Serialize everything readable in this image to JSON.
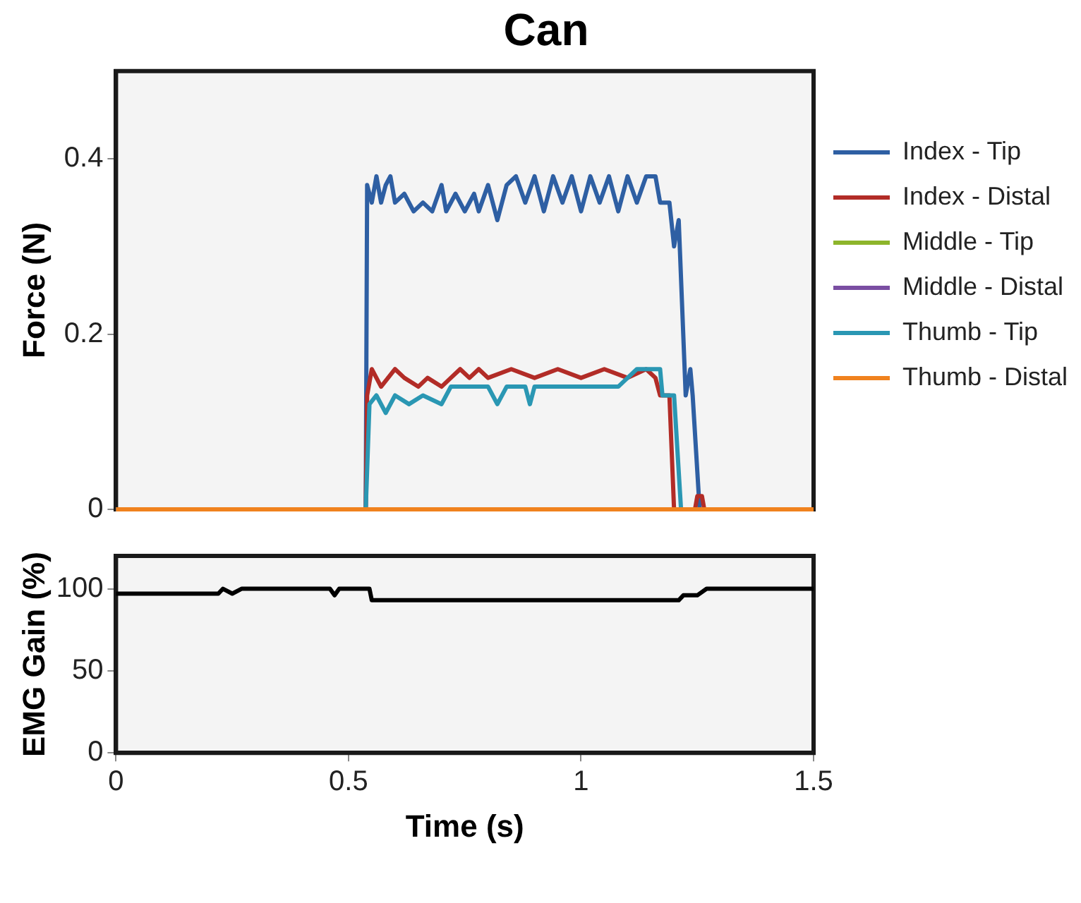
{
  "chart_data": [
    {
      "type": "line",
      "title": "Can",
      "ylabel": "Force (N)",
      "xlim": [
        0,
        1.5
      ],
      "ylim": [
        0,
        0.5
      ],
      "yticks": [
        0,
        0.2,
        0.4
      ],
      "tick_labels": "y",
      "grid": false,
      "legend": "right",
      "series": [
        {
          "name": "Index - Tip",
          "color": "#2e5fa3",
          "x": [
            0,
            0.537,
            0.54,
            0.55,
            0.56,
            0.57,
            0.58,
            0.59,
            0.6,
            0.62,
            0.64,
            0.66,
            0.68,
            0.7,
            0.71,
            0.73,
            0.75,
            0.77,
            0.78,
            0.8,
            0.82,
            0.84,
            0.86,
            0.88,
            0.9,
            0.92,
            0.94,
            0.96,
            0.98,
            1.0,
            1.02,
            1.04,
            1.06,
            1.08,
            1.1,
            1.12,
            1.14,
            1.16,
            1.17,
            1.19,
            1.2,
            1.21,
            1.225,
            1.235,
            1.24,
            1.255,
            1.5
          ],
          "values": [
            0,
            0,
            0.37,
            0.35,
            0.38,
            0.35,
            0.37,
            0.38,
            0.35,
            0.36,
            0.34,
            0.35,
            0.34,
            0.37,
            0.34,
            0.36,
            0.34,
            0.36,
            0.34,
            0.37,
            0.33,
            0.37,
            0.38,
            0.35,
            0.38,
            0.34,
            0.38,
            0.35,
            0.38,
            0.34,
            0.38,
            0.35,
            0.38,
            0.34,
            0.38,
            0.35,
            0.38,
            0.38,
            0.35,
            0.35,
            0.3,
            0.33,
            0.13,
            0.16,
            0.13,
            0,
            0
          ]
        },
        {
          "name": "Index - Distal",
          "color": "#b22c27",
          "x": [
            0,
            0.537,
            0.54,
            0.55,
            0.57,
            0.6,
            0.62,
            0.65,
            0.67,
            0.7,
            0.72,
            0.74,
            0.76,
            0.78,
            0.8,
            0.85,
            0.9,
            0.95,
            1.0,
            1.05,
            1.1,
            1.14,
            1.16,
            1.17,
            1.19,
            1.2,
            1.245,
            1.25,
            1.26,
            1.265,
            1.5
          ],
          "values": [
            0,
            0,
            0.13,
            0.16,
            0.14,
            0.16,
            0.15,
            0.14,
            0.15,
            0.14,
            0.15,
            0.16,
            0.15,
            0.16,
            0.15,
            0.16,
            0.15,
            0.16,
            0.15,
            0.16,
            0.15,
            0.16,
            0.15,
            0.13,
            0.13,
            0,
            0,
            0.015,
            0.015,
            0,
            0
          ]
        },
        {
          "name": "Middle - Tip",
          "color": "#8db52b"
        },
        {
          "name": "Middle - Distal",
          "color": "#7a4ea2"
        },
        {
          "name": "Thumb - Tip",
          "color": "#2a97b3",
          "x": [
            0,
            0.537,
            0.545,
            0.56,
            0.58,
            0.6,
            0.63,
            0.66,
            0.7,
            0.72,
            0.8,
            0.82,
            0.84,
            0.88,
            0.89,
            0.9,
            1.0,
            1.08,
            1.1,
            1.12,
            1.15,
            1.17,
            1.175,
            1.2,
            1.215,
            1.5
          ],
          "values": [
            0,
            0,
            0.12,
            0.13,
            0.11,
            0.13,
            0.12,
            0.13,
            0.12,
            0.14,
            0.14,
            0.12,
            0.14,
            0.14,
            0.12,
            0.14,
            0.14,
            0.14,
            0.15,
            0.16,
            0.16,
            0.16,
            0.13,
            0.13,
            0,
            0
          ]
        },
        {
          "name": "Thumb - Distal",
          "color": "#f0821e",
          "x": [
            0,
            1.5
          ],
          "values": [
            0,
            0
          ]
        }
      ]
    },
    {
      "type": "line",
      "xlabel": "Time (s)",
      "ylabel": "EMG Gain (%)",
      "xlim": [
        0,
        1.5
      ],
      "xticks": [
        0,
        0.5,
        1,
        1.5
      ],
      "ylim": [
        0,
        120
      ],
      "yticks": [
        0,
        50,
        100
      ],
      "grid": false,
      "series": [
        {
          "color": "#000000",
          "x": [
            0,
            0.05,
            0.22,
            0.23,
            0.25,
            0.27,
            0.28,
            0.46,
            0.47,
            0.48,
            0.545,
            0.55,
            0.7,
            0.9,
            1.1,
            1.21,
            1.22,
            1.25,
            1.27,
            1.5
          ],
          "values": [
            97,
            97,
            97,
            100,
            97,
            100,
            100,
            100,
            96,
            100,
            100,
            93,
            93,
            93,
            93,
            93,
            96,
            96,
            100,
            100
          ]
        }
      ]
    }
  ]
}
